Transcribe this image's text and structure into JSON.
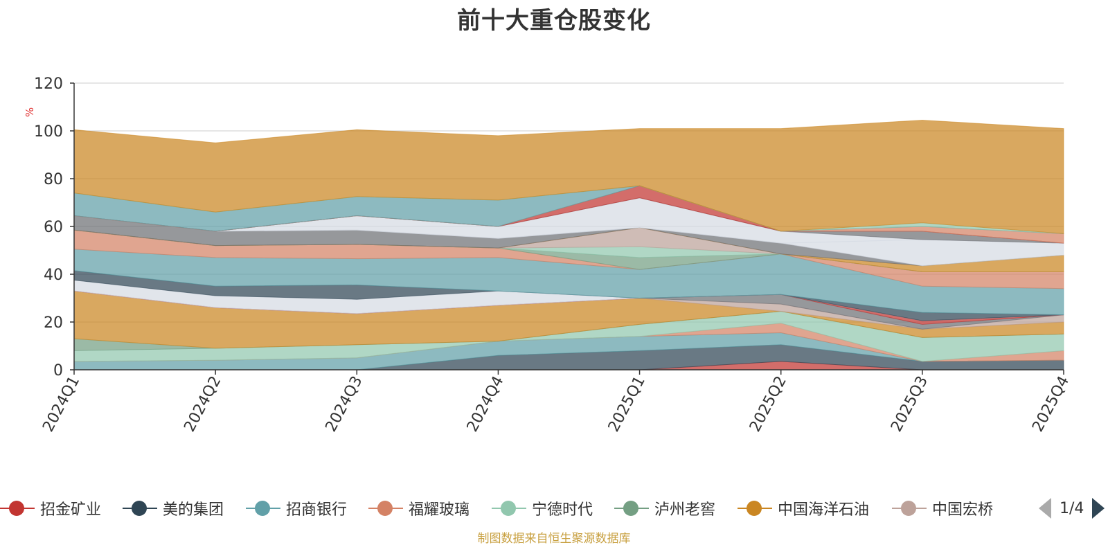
{
  "chart_data": {
    "type": "area",
    "stacked": true,
    "title": "前十大重仓股变化",
    "ylabel": "%",
    "ylim": [
      0,
      120
    ],
    "yticks": [
      0,
      20,
      40,
      60,
      80,
      100,
      120
    ],
    "categories": [
      "2024Q1",
      "2024Q2",
      "2024Q3",
      "2024Q4",
      "2025Q1",
      "2025Q2",
      "2025Q3",
      "2025Q4"
    ],
    "legend_position": "bottom",
    "legend_page": "1/4",
    "series": [
      {
        "name": "",
        "color": "#c23531",
        "values": [
          0,
          0,
          0,
          0,
          0,
          3.5,
          0,
          0
        ]
      },
      {
        "name": "",
        "color": "#2f4554",
        "values": [
          0,
          0,
          0,
          6,
          8,
          7,
          3.5,
          4
        ]
      },
      {
        "name": "",
        "color": "#61a0a8",
        "values": [
          3.5,
          4,
          5,
          6,
          6,
          5,
          0,
          0
        ]
      },
      {
        "name": "",
        "color": "#d48265",
        "values": [
          0,
          0,
          0,
          0,
          0,
          4,
          0,
          4
        ]
      },
      {
        "name": "",
        "color": "#91c7ae",
        "values": [
          4.5,
          5,
          5.5,
          0,
          5,
          5,
          10,
          7
        ]
      },
      {
        "name": "",
        "color": "#749f83",
        "values": [
          5,
          0,
          0,
          0,
          0,
          0,
          0,
          0
        ]
      },
      {
        "name": "",
        "color": "#ca8622",
        "values": [
          20,
          17,
          13,
          15,
          11,
          0,
          3.5,
          5
        ]
      },
      {
        "name": "",
        "color": "#bda29a",
        "values": [
          0,
          0,
          0,
          0,
          0,
          3,
          0,
          3
        ]
      },
      {
        "name": "",
        "color": "#6e7074",
        "values": [
          0,
          0,
          0,
          0,
          0,
          4,
          2,
          0
        ]
      },
      {
        "name": "",
        "color": "#c23531",
        "values": [
          0,
          0,
          0,
          0,
          0,
          0,
          1.5,
          0
        ]
      },
      {
        "name": "",
        "color": "#d5dbe3",
        "values": [
          4.5,
          5,
          6,
          6,
          0,
          0,
          0,
          0
        ]
      },
      {
        "name": "",
        "color": "#2f4554",
        "values": [
          4,
          4,
          6,
          0,
          0,
          0,
          3.5,
          0
        ]
      },
      {
        "name": "",
        "color": "#61a0a8",
        "values": [
          9,
          12,
          11,
          14,
          12,
          17,
          11,
          11
        ]
      },
      {
        "name": "",
        "color": "#d48265",
        "values": [
          8,
          5,
          6,
          4,
          0,
          0,
          6,
          7
        ]
      },
      {
        "name": "",
        "color": "#749f83",
        "values": [
          0,
          0,
          0,
          0,
          5,
          0,
          0,
          0
        ]
      },
      {
        "name": "",
        "color": "#91c7ae",
        "values": [
          0,
          0,
          0,
          0,
          4.5,
          0,
          0,
          0
        ]
      },
      {
        "name": "",
        "color": "#bda29a",
        "values": [
          0,
          0,
          0,
          0,
          8,
          0,
          0,
          0
        ]
      },
      {
        "name": "",
        "color": "#ca8622",
        "values": [
          0,
          0,
          0,
          0,
          0,
          0,
          2.5,
          7
        ]
      },
      {
        "name": "",
        "color": "#6e7074",
        "values": [
          6,
          6,
          6,
          4,
          0,
          4.5,
          0,
          0
        ]
      },
      {
        "name": "",
        "color": "#d5dbe3",
        "values": [
          0,
          0,
          0,
          0,
          0,
          0,
          11,
          5
        ]
      },
      {
        "name": "",
        "color": "#d5dbe3",
        "values": [
          0,
          0,
          6,
          5,
          12.5,
          5,
          0,
          0
        ]
      },
      {
        "name": "",
        "color": "#6e7074",
        "values": [
          0,
          0,
          0,
          0,
          0,
          0,
          3.5,
          0
        ]
      },
      {
        "name": "",
        "color": "#c23531",
        "values": [
          0,
          0,
          0,
          0,
          5,
          0,
          0,
          0
        ]
      },
      {
        "name": "",
        "color": "#d48265",
        "values": [
          0,
          0,
          0,
          0,
          0,
          0,
          2,
          4
        ]
      },
      {
        "name": "",
        "color": "#61a0a8",
        "values": [
          9.5,
          8,
          8,
          11,
          0,
          0,
          0,
          0
        ]
      },
      {
        "name": "",
        "color": "#91c7ae",
        "values": [
          0,
          0,
          0,
          0,
          0,
          0,
          1.5,
          0
        ]
      },
      {
        "name": "",
        "color": "#ca8622",
        "values": [
          26.5,
          29,
          28,
          27,
          24,
          43,
          43,
          44
        ]
      }
    ]
  },
  "legend": {
    "items": [
      {
        "label": "招金矿业",
        "color": "#c23531"
      },
      {
        "label": "美的集团",
        "color": "#2f4554"
      },
      {
        "label": "招商银行",
        "color": "#61a0a8"
      },
      {
        "label": "福耀玻璃",
        "color": "#d48265"
      },
      {
        "label": "宁德时代",
        "color": "#91c7ae"
      },
      {
        "label": "泸州老窖",
        "color": "#749f83"
      },
      {
        "label": "中国海洋石油",
        "color": "#ca8622"
      },
      {
        "label": "中国宏桥",
        "color": "#bda29a"
      }
    ],
    "page": "1/4"
  },
  "footer": "制图数据来自恒生聚源数据库"
}
